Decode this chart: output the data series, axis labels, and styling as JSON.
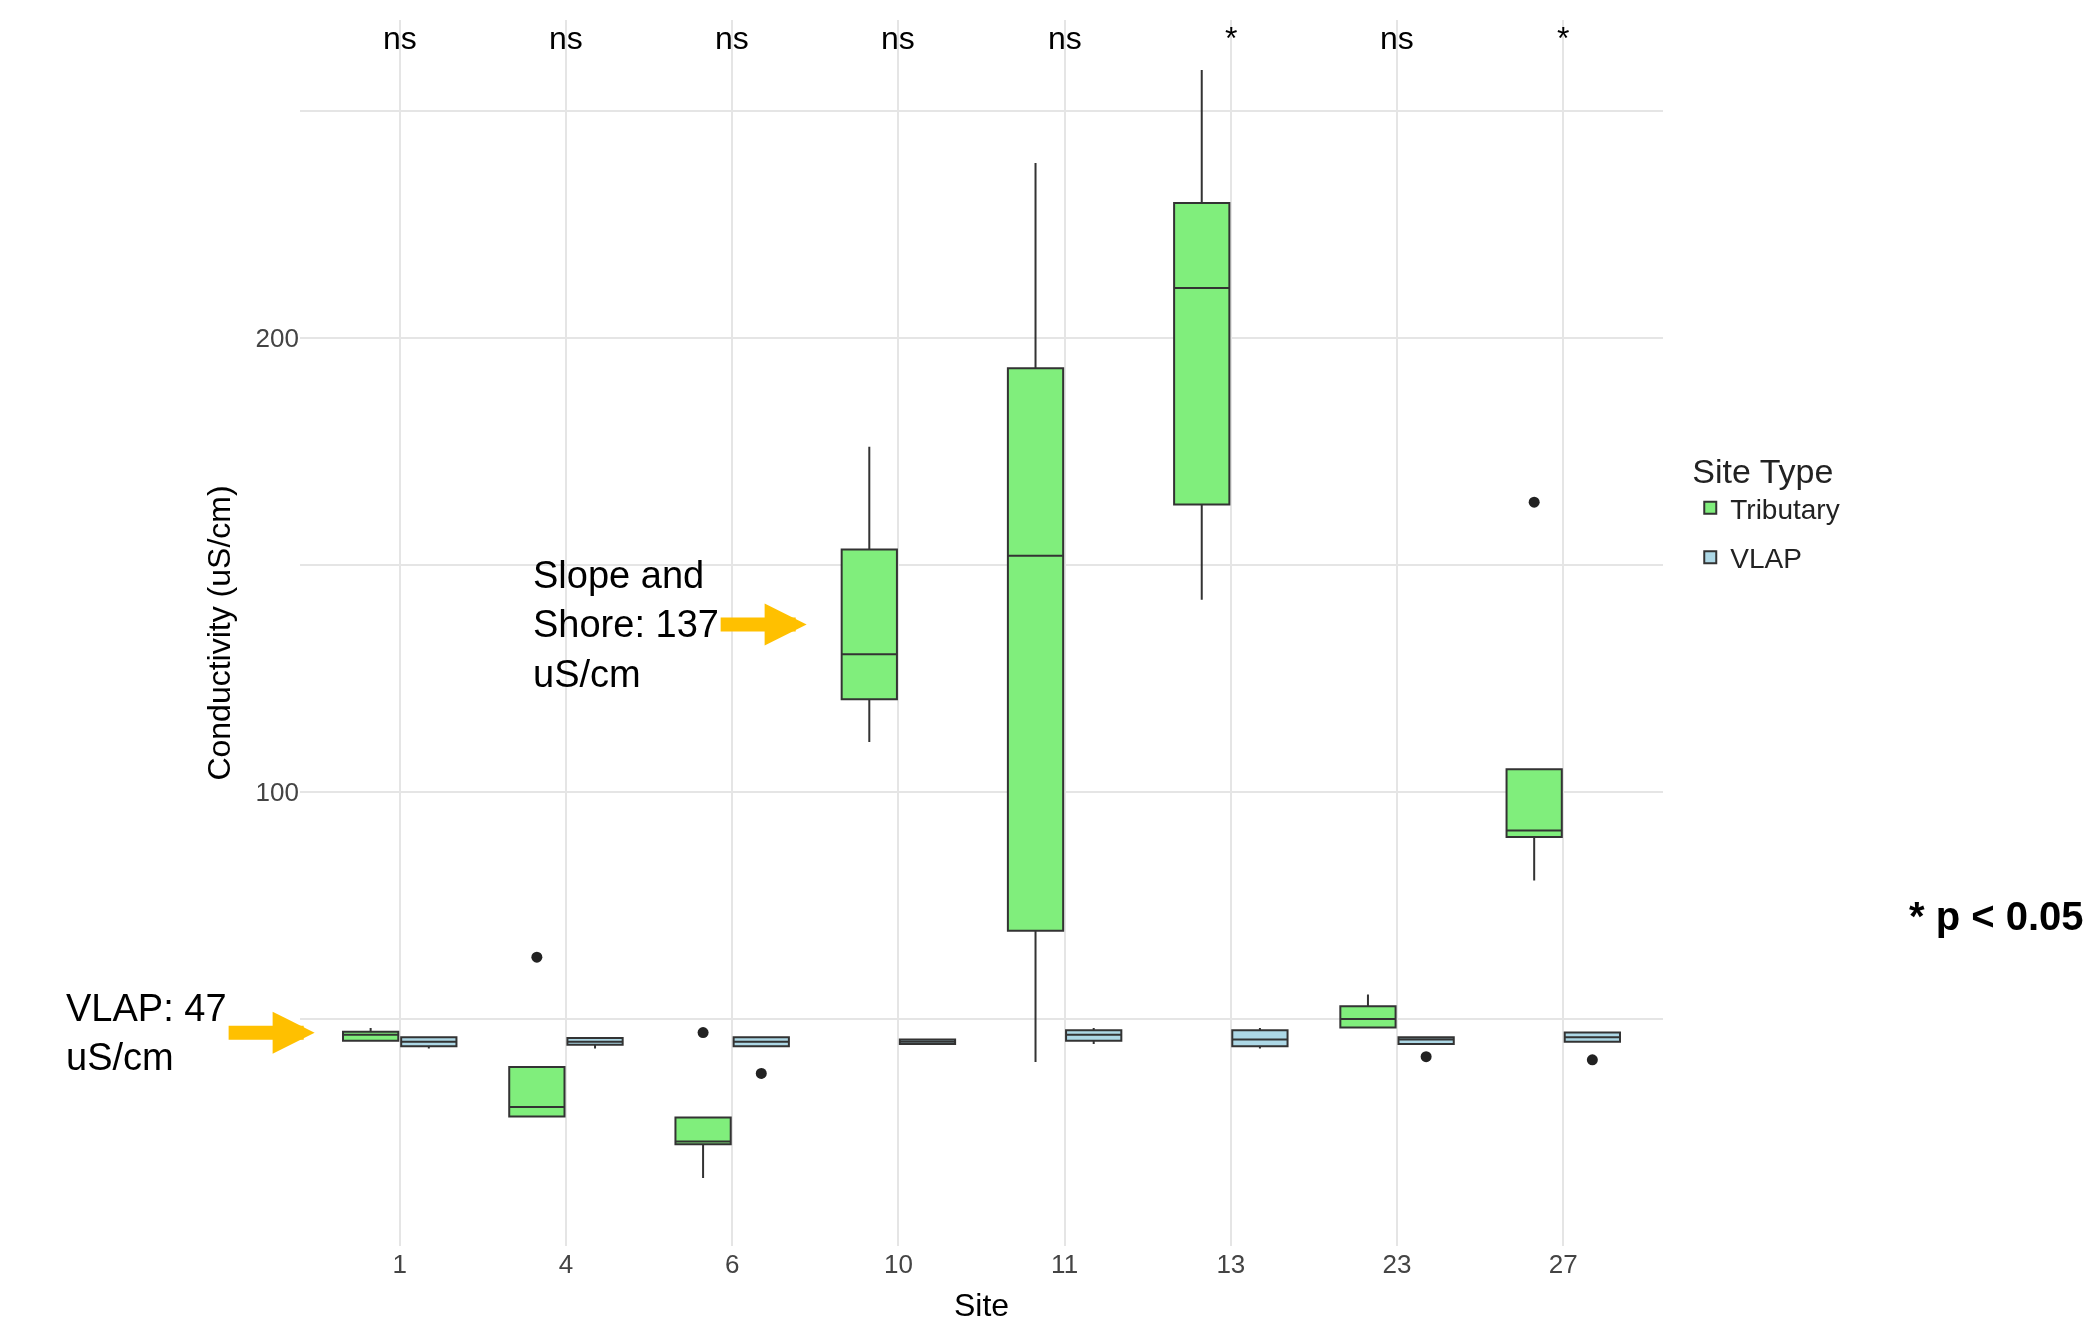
{
  "chart_data": {
    "type": "box",
    "xlabel": "Site",
    "ylabel": "Conductivity (uS/cm)",
    "legend_title": "Site Type",
    "legend": "right",
    "grid": true,
    "categories": [
      "1",
      "4",
      "6",
      "10",
      "11",
      "13",
      "23",
      "27"
    ],
    "ylim": [
      0,
      270
    ],
    "yticks": [
      {
        "value": 50,
        "label": null
      },
      100,
      {
        "value": 150,
        "label": null
      },
      200,
      {
        "value": 250,
        "label": null
      }
    ],
    "series": [
      {
        "name": "Tributary",
        "color": "#80ee7c",
        "boxes": [
          {
            "low": 45.2,
            "q1": 45.2,
            "median": 46.5,
            "q3": 47.2,
            "high": 48
          },
          {
            "low": 28.5,
            "q1": 28.5,
            "median": 30.6,
            "q3": 39.4,
            "high": 39.4,
            "outliers": [
              63.6
            ]
          },
          {
            "low": 15,
            "q1": 22.4,
            "median": 23,
            "q3": 28.3,
            "high": 28.3,
            "outliers": [
              47
            ]
          },
          {
            "low": 111,
            "q1": 120.4,
            "median": 130.3,
            "q3": 153.4,
            "high": 176
          },
          {
            "low": 40.5,
            "q1": 69.4,
            "median": 152,
            "q3": 193.3,
            "high": 238.5
          },
          {
            "low": 142.3,
            "q1": 163.3,
            "median": 211,
            "q3": 229.7,
            "high": 259
          },
          {
            "low": 48,
            "q1": 48.1,
            "median": 50,
            "q3": 52.8,
            "high": 55.4
          },
          {
            "low": 80.5,
            "q1": 90.1,
            "median": 91.5,
            "q3": 105,
            "high": 105,
            "outliers": [
              163.8
            ]
          }
        ]
      },
      {
        "name": "VLAP",
        "color": "#add8e6",
        "boxes": [
          {
            "low": 43.5,
            "q1": 44,
            "median": 45,
            "q3": 46,
            "high": 46
          },
          {
            "low": 43.5,
            "q1": 44.3,
            "median": 45,
            "q3": 45.8,
            "high": 45.8
          },
          {
            "low": 44,
            "q1": 44,
            "median": 45,
            "q3": 46,
            "high": 46,
            "outliers": [
              38
            ]
          },
          {
            "low": 44.5,
            "q1": 44.5,
            "median": 45,
            "q3": 45.5,
            "high": 45.5
          },
          {
            "low": 44.5,
            "q1": 45.2,
            "median": 46.5,
            "q3": 47.5,
            "high": 48
          },
          {
            "low": 43.5,
            "q1": 44,
            "median": 45.5,
            "q3": 47.5,
            "high": 48
          },
          {
            "low": 44.5,
            "q1": 44.5,
            "median": 45.5,
            "q3": 46,
            "high": 46,
            "outliers": [
              41.7
            ]
          },
          {
            "low": 45,
            "q1": 45,
            "median": 46,
            "q3": 47,
            "high": 47,
            "outliers": [
              41
            ]
          }
        ]
      }
    ],
    "annotations": [
      "ns",
      "ns",
      "ns",
      "ns",
      "ns",
      "*",
      "ns",
      "*",
      "Slope and Shore: 137 uS/cm",
      "VLAP: 47 uS/cm",
      "* p < 0.05"
    ]
  }
}
